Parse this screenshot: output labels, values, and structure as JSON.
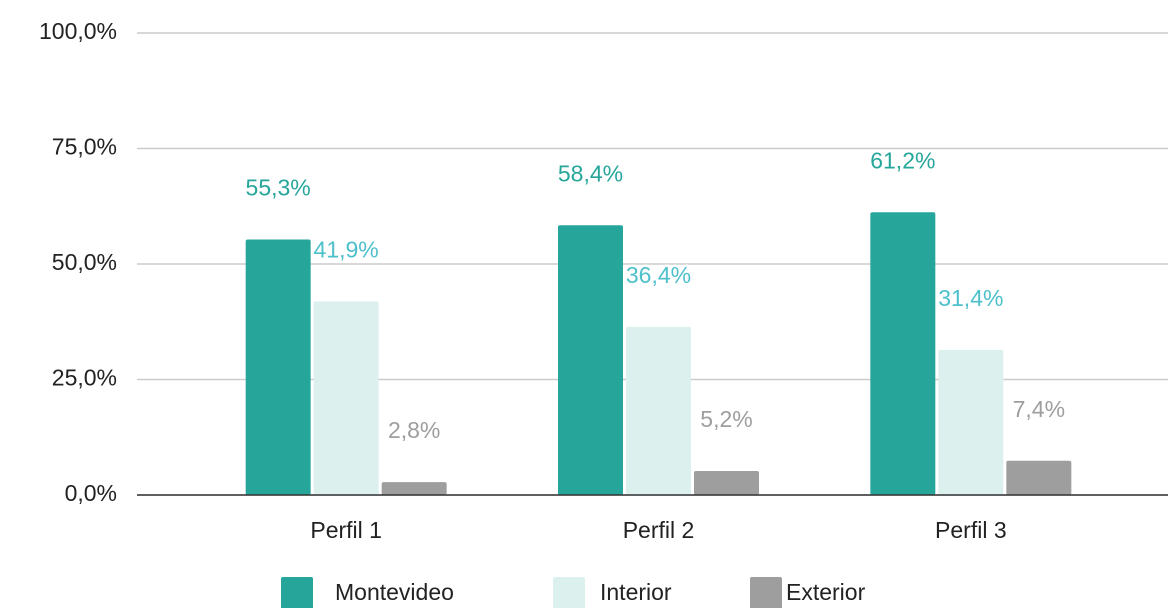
{
  "chart_data": {
    "type": "bar",
    "categories": [
      "Perfil 1",
      "Perfil 2",
      "Perfil 3"
    ],
    "series": [
      {
        "name": "Montevideo",
        "color": "#26a69a",
        "label_color": "#26a69a",
        "values": [
          55.3,
          58.4,
          61.2
        ],
        "value_labels": [
          "55,3%",
          "58,4%",
          "61,2%"
        ]
      },
      {
        "name": "Interior",
        "color": "#dcf0ee",
        "label_color": "#4dc0cc",
        "values": [
          41.9,
          36.4,
          31.4
        ],
        "value_labels": [
          "41,9%",
          "36,4%",
          "31,4%"
        ]
      },
      {
        "name": "Exterior",
        "color": "#9e9e9e",
        "label_color": "#9e9e9e",
        "values": [
          2.8,
          5.2,
          7.4
        ],
        "value_labels": [
          "2,8%",
          "5,2%",
          "7,4%"
        ]
      }
    ],
    "ylim": [
      0,
      100
    ],
    "yticks": [
      {
        "value": 0,
        "label": "0,0%"
      },
      {
        "value": 25,
        "label": "25,0%"
      },
      {
        "value": 50,
        "label": "50,0%"
      },
      {
        "value": 75,
        "label": "75,0%"
      },
      {
        "value": 100,
        "label": "100,0%"
      }
    ],
    "grid": true,
    "legend": "bottom"
  }
}
